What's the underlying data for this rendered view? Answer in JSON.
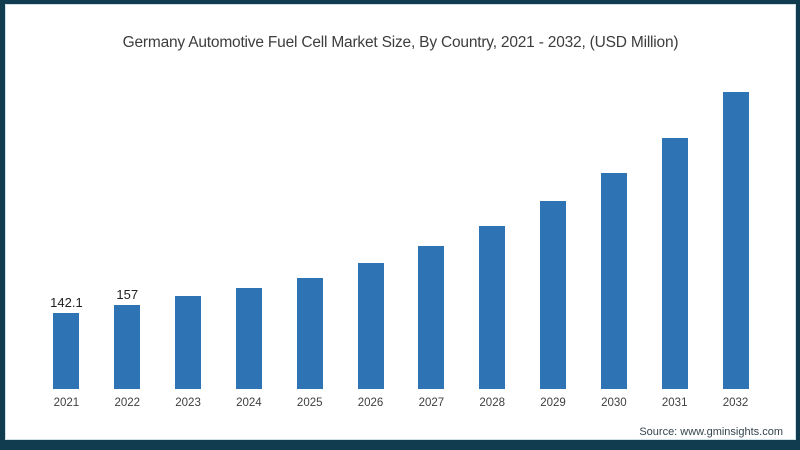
{
  "title": "Germany Automotive Fuel Cell Market Size, By Country, 2021 - 2032, (USD Million)",
  "source": "Source: www.gminsights.com",
  "colors": {
    "bar": "#2e74b5",
    "frame_border": "#113c50",
    "title_text": "#3d3d3d",
    "tick_text": "#3f3f3f"
  },
  "chart_data": {
    "type": "bar",
    "title": "Germany Automotive Fuel Cell Market Size, By Country, 2021 - 2032, (USD Million)",
    "categories": [
      "2021",
      "2022",
      "2023",
      "2024",
      "2025",
      "2026",
      "2027",
      "2028",
      "2029",
      "2030",
      "2031",
      "2032"
    ],
    "values": [
      142.1,
      157,
      174,
      188,
      208,
      236,
      268,
      305,
      351,
      404,
      469,
      555
    ],
    "data_labels": [
      "142.1",
      "157",
      "",
      "",
      "",
      "",
      "",
      "",
      "",
      "",
      "",
      ""
    ],
    "xlabel": "",
    "ylabel": "",
    "ylim": [
      0,
      580
    ],
    "grid": false,
    "y_axis_visible": false,
    "x_axis_line_visible": false,
    "legend": "none",
    "bar_color": "#2e74b5"
  }
}
